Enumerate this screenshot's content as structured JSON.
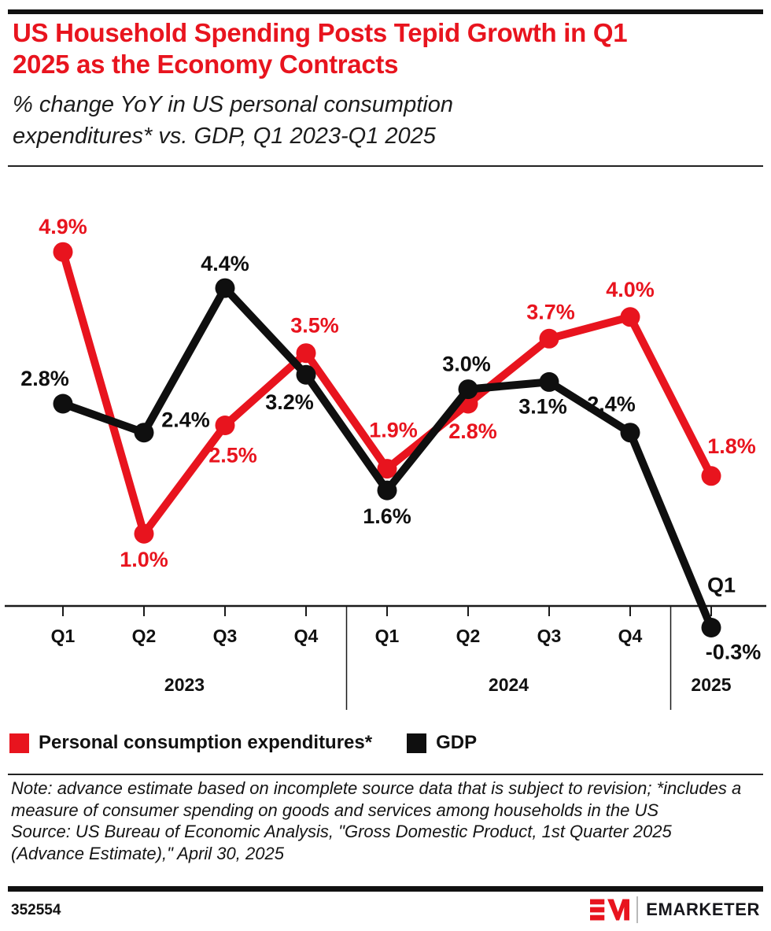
{
  "header": {
    "title": "US Household Spending Posts Tepid Growth in Q1 2025 as the Economy Contracts",
    "subtitle": "% change YoY in US personal consumption expenditures* vs. GDP, Q1 2023-Q1 2025"
  },
  "chart_data": {
    "type": "line",
    "title": "US Household Spending Posts Tepid Growth in Q1 2025 as the Economy Contracts",
    "subtitle": "% change YoY in US personal consumption expenditures* vs. GDP, Q1 2023-Q1 2025",
    "x_labels": [
      "Q1",
      "Q2",
      "Q3",
      "Q4",
      "Q1",
      "Q2",
      "Q3",
      "Q4",
      "Q1"
    ],
    "omit_x_labels": [
      8
    ],
    "years": [
      {
        "label": "2023",
        "indices": [
          0,
          3
        ]
      },
      {
        "label": "2024",
        "indices": [
          4,
          7
        ]
      },
      {
        "label": "2025",
        "indices": [
          8,
          8
        ]
      }
    ],
    "baseline_value": 0,
    "ylim": [
      -0.8,
      5.4
    ],
    "grid": false,
    "legend_position": "bottom",
    "series": [
      {
        "name": "Personal consumption expenditures*",
        "color": "#e8141e",
        "values": [
          4.9,
          1.0,
          2.5,
          3.5,
          1.9,
          2.8,
          3.7,
          4.0,
          1.8
        ],
        "point_labels": [
          "4.9%",
          "1.0%",
          "2.5%",
          "3.5%",
          "1.9%",
          "2.8%",
          "3.7%",
          "4.0%",
          "1.8%"
        ],
        "label_offsets": [
          [
            0,
            -32
          ],
          [
            0,
            33
          ],
          [
            10,
            38
          ],
          [
            11,
            -35
          ],
          [
            8,
            -49
          ],
          [
            6,
            35
          ],
          [
            2,
            -34
          ],
          [
            0,
            -35
          ],
          [
            26,
            -38
          ]
        ]
      },
      {
        "name": "GDP",
        "color": "#0f0f0f",
        "values": [
          2.8,
          2.4,
          4.4,
          3.2,
          1.6,
          3.0,
          3.1,
          2.4,
          -0.3
        ],
        "point_labels": [
          "2.8%",
          "2.4%",
          "4.4%",
          "3.2%",
          "1.6%",
          "3.0%",
          "3.1%",
          "2.4%",
          "-0.3%"
        ],
        "label_offsets": [
          [
            -23,
            -32
          ],
          [
            53,
            -16
          ],
          [
            0,
            -31
          ],
          [
            -21,
            35
          ],
          [
            0,
            33
          ],
          [
            -2,
            -32
          ],
          [
            -8,
            31
          ],
          [
            -24,
            -36
          ],
          [
            28,
            31
          ]
        ]
      }
    ],
    "extra_labels": [
      {
        "text": "Q1",
        "series": 1,
        "index": 8,
        "dx": 13,
        "dy": -54,
        "color": "#0f0f0f"
      }
    ]
  },
  "legend": {
    "items": [
      {
        "label": "Personal consumption expenditures*",
        "color": "#e8141e"
      },
      {
        "label": "GDP",
        "color": "#0f0f0f"
      }
    ]
  },
  "notes": {
    "note": "Note: advance estimate based on incomplete source data that is subject to revision; *includes a measure of consumer spending on goods and services among households in the US",
    "source": "Source: US Bureau of Economic Analysis, \"Gross Domestic Product, 1st Quarter 2025 (Advance Estimate),\" April 30, 2025"
  },
  "footer": {
    "chart_id": "352554",
    "brand": "EMARKETER"
  }
}
